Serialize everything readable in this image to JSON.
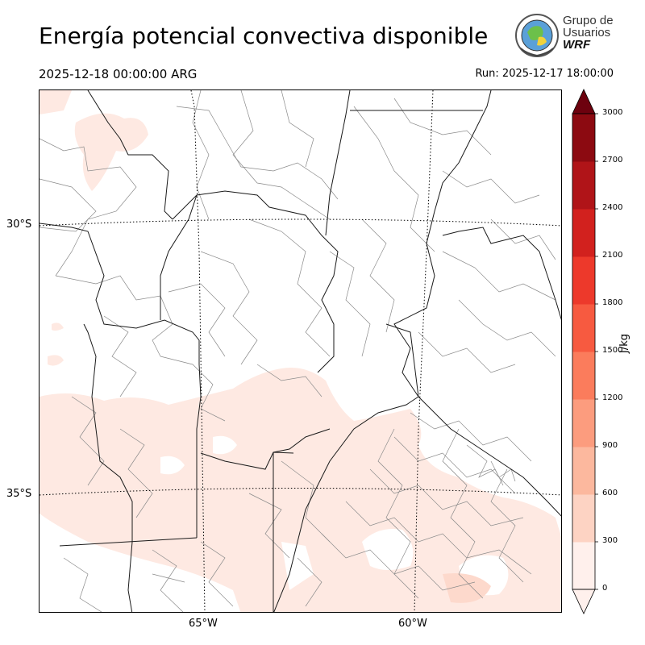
{
  "header": {
    "title": "Energía potencial convectiva disponible",
    "valid_time": "2025-12-18 00:00:00 ARG",
    "run_time": "Run: 2025-12-17 18:00:00"
  },
  "logo": {
    "line1": "Grupo de",
    "line2": "Usuarios",
    "line3": "WRF"
  },
  "map": {
    "lat_labels": [
      "30°S",
      "35°S"
    ],
    "lon_labels": [
      "65°W",
      "60°W"
    ],
    "field_colors": {
      "cape_low": "#fee9e2",
      "boundary": "#1a1a1a",
      "subdivision": "#8a8a8a",
      "graticule": "#000000"
    }
  },
  "colorbar": {
    "unit": "J/kg",
    "levels": [
      0,
      300,
      600,
      900,
      1200,
      1500,
      1800,
      2100,
      2400,
      2700,
      3000
    ],
    "tick_labels": [
      "0",
      "300",
      "600",
      "900",
      "1200",
      "1500",
      "1800",
      "2100",
      "2400",
      "2700",
      "3000"
    ],
    "colors": [
      "#fff0ec",
      "#fdd3c3",
      "#fcb89e",
      "#fc9c7e",
      "#fb7c5c",
      "#f75a40",
      "#ed392b",
      "#d2211e",
      "#b01418",
      "#8c0a11",
      "#6d010e"
    ],
    "extend": "both"
  }
}
